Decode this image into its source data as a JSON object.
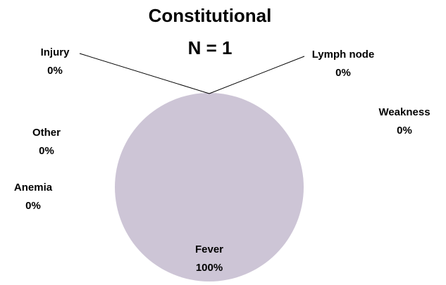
{
  "chart_data": {
    "type": "pie",
    "title": "Constitutional",
    "subtitle": "N = 1",
    "categories": [
      "Fever",
      "Anemia",
      "Other",
      "Injury",
      "Lymph node",
      "Weakness"
    ],
    "values": [
      100,
      0,
      0,
      0,
      0,
      0
    ],
    "value_labels": [
      "100%",
      "0%",
      "0%",
      "0%",
      "0%",
      "0%"
    ],
    "color": "#cdc5d6"
  }
}
